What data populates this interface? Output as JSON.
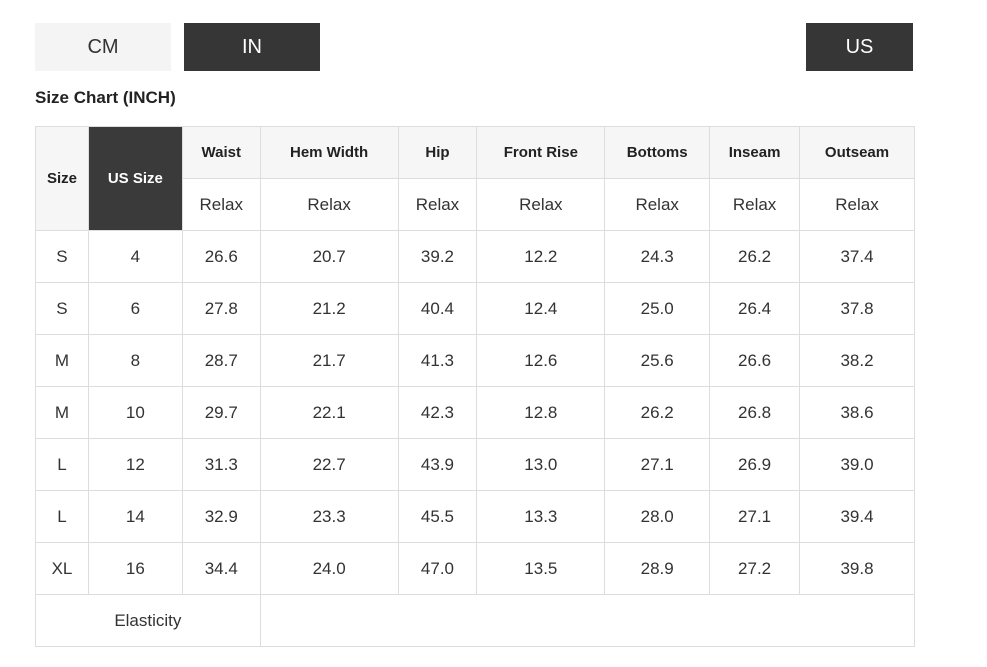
{
  "toolbar": {
    "cm_label": "CM",
    "in_label": "IN",
    "us_label": "US"
  },
  "title": "Size Chart (INCH)",
  "table": {
    "size_header": "Size",
    "us_size_header": "US Size",
    "measure_headers": [
      "Waist",
      "Hem Width",
      "Hip",
      "Front Rise",
      "Bottoms",
      "Inseam",
      "Outseam"
    ],
    "fit_row": [
      "Relax",
      "Relax",
      "Relax",
      "Relax",
      "Relax",
      "Relax",
      "Relax"
    ],
    "rows": [
      {
        "size": "S",
        "us": "4",
        "values": [
          "26.6",
          "20.7",
          "39.2",
          "12.2",
          "24.3",
          "26.2",
          "37.4"
        ]
      },
      {
        "size": "S",
        "us": "6",
        "values": [
          "27.8",
          "21.2",
          "40.4",
          "12.4",
          "25.0",
          "26.4",
          "37.8"
        ]
      },
      {
        "size": "M",
        "us": "8",
        "values": [
          "28.7",
          "21.7",
          "41.3",
          "12.6",
          "25.6",
          "26.6",
          "38.2"
        ]
      },
      {
        "size": "M",
        "us": "10",
        "values": [
          "29.7",
          "22.1",
          "42.3",
          "12.8",
          "26.2",
          "26.8",
          "38.6"
        ]
      },
      {
        "size": "L",
        "us": "12",
        "values": [
          "31.3",
          "22.7",
          "43.9",
          "13.0",
          "27.1",
          "26.9",
          "39.0"
        ]
      },
      {
        "size": "L",
        "us": "14",
        "values": [
          "32.9",
          "23.3",
          "45.5",
          "13.3",
          "28.0",
          "27.1",
          "39.4"
        ]
      },
      {
        "size": "XL",
        "us": "16",
        "values": [
          "34.4",
          "24.0",
          "47.0",
          "13.5",
          "28.9",
          "27.2",
          "39.8"
        ]
      }
    ],
    "footer_label": "Elasticity",
    "footer_value": ""
  },
  "colors": {
    "dark_accent": "#363636",
    "dark_header_cell": "#3a3a3a",
    "light_button_bg": "#f4f4f4",
    "header_bg": "#f6f6f6",
    "border": "#dddddd",
    "text": "#333333"
  }
}
